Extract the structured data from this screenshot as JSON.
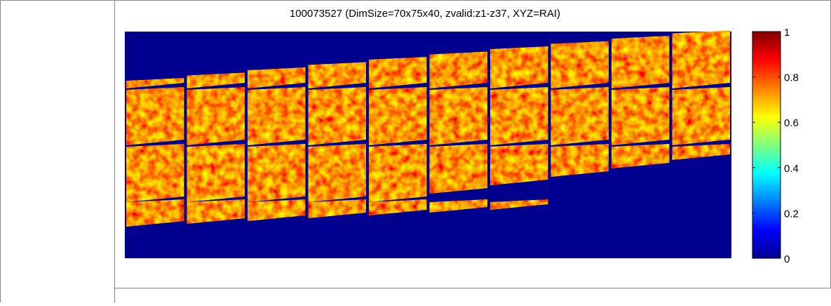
{
  "figure": {
    "title": "100073527 (DimSize=70x75x40, zvalid:z1-z37, XYZ=RAI)",
    "colorbar": {
      "lim": [
        0,
        1
      ],
      "ticks": [
        0,
        0.2,
        0.4,
        0.6,
        0.8,
        1
      ]
    }
  }
}
